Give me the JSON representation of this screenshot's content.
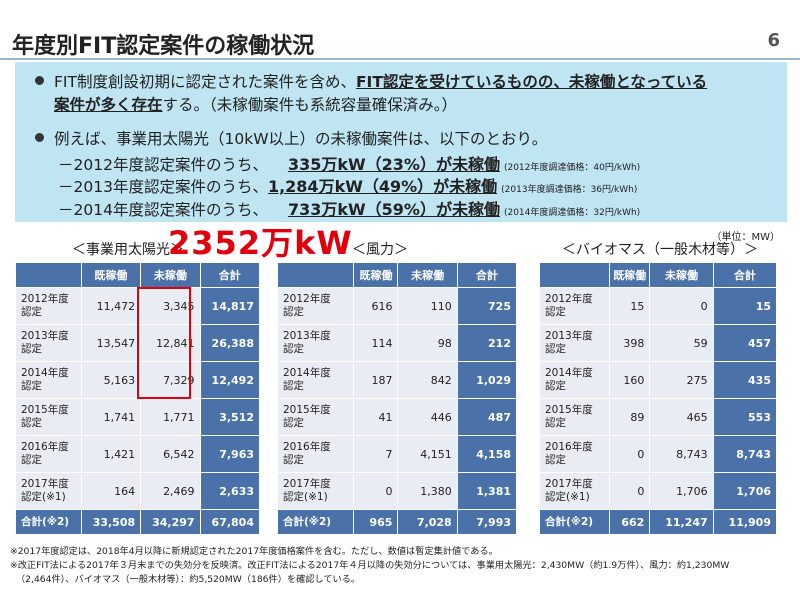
{
  "title": "年度別FIT認定案件の稼働状況",
  "page_number": "6",
  "bullets": {
    "b1_pre": "FIT制度創設初期に認定された案件を含め、",
    "b1_emph": "FIT認定を受けているものの、未稼働となっている",
    "b1_emph2": "案件が多く存在",
    "b1_post": "する。（未稼働案件も系統容量確保済み。）",
    "b2": "例えば、事業用太陽光（10kW以上）の未稼働案件は、以下のとおり。",
    "subs": [
      {
        "prefix": "－2012年度認定案件のうち、",
        "value": "335万kW（23%）が未稼働",
        "price": "(2012年度調達価格：40円/kWh)"
      },
      {
        "prefix": "－2013年度認定案件のうち、",
        "value": "1,284万kW（49%）が未稼働",
        "price": "(2013年度調達価格：36円/kWh)"
      },
      {
        "prefix": "－2014年度認定案件のうち、",
        "value": "733万kW（59%）が未稼働",
        "price": "(2014年度調達価格：32円/kWh)"
      }
    ]
  },
  "unit_label": "（単位：MW）",
  "overlay_total": "2352万kW",
  "captions": {
    "solar": "＜事業用太陽光＞",
    "wind": "＜風力＞",
    "biomass": "＜バイオマス（一般木材等）＞"
  },
  "headers": {
    "operating": "既稼働",
    "idle": "未稼働",
    "total": "合計"
  },
  "row_labels": [
    [
      "2012年度",
      "認定"
    ],
    [
      "2013年度",
      "認定"
    ],
    [
      "2014年度",
      "認定"
    ],
    [
      "2015年度",
      "認定"
    ],
    [
      "2016年度",
      "認定"
    ],
    [
      "2017年度",
      "認定(※1)"
    ]
  ],
  "sum_label": "合計(※2)",
  "tables": {
    "solar": {
      "rows": [
        [
          "11,472",
          "3,345",
          "14,817"
        ],
        [
          "13,547",
          "12,841",
          "26,388"
        ],
        [
          "5,163",
          "7,329",
          "12,492"
        ],
        [
          "1,741",
          "1,771",
          "3,512"
        ],
        [
          "1,421",
          "6,542",
          "7,963"
        ],
        [
          "164",
          "2,469",
          "2,633"
        ]
      ],
      "sum": [
        "33,508",
        "34,297",
        "67,804"
      ]
    },
    "wind": {
      "rows": [
        [
          "616",
          "110",
          "725"
        ],
        [
          "114",
          "98",
          "212"
        ],
        [
          "187",
          "842",
          "1,029"
        ],
        [
          "41",
          "446",
          "487"
        ],
        [
          "7",
          "4,151",
          "4,158"
        ],
        [
          "0",
          "1,380",
          "1,381"
        ]
      ],
      "sum": [
        "965",
        "7,028",
        "7,993"
      ]
    },
    "biomass": {
      "rows": [
        [
          "15",
          "0",
          "15"
        ],
        [
          "398",
          "59",
          "457"
        ],
        [
          "160",
          "275",
          "435"
        ],
        [
          "89",
          "465",
          "553"
        ],
        [
          "0",
          "8,743",
          "8,743"
        ],
        [
          "0",
          "1,706",
          "1,706"
        ]
      ],
      "sum": [
        "662",
        "11,247",
        "11,909"
      ]
    }
  },
  "notes": [
    "※2017年度認定は、2018年4月以降に新規認定された2017年度価格案件を含む。ただし、数値は暫定集計値である。",
    "※改正FIT法による2017年３月末までの失効分を反映済。改正FIT法による2017年４月以降の失効分については、事業用太陽光：2,430MW（約1.9万件）、風力：約1,230MW",
    "（2,464件）、バイオマス（一般木材等）：約5,520MW（186件）を確認している。"
  ]
}
